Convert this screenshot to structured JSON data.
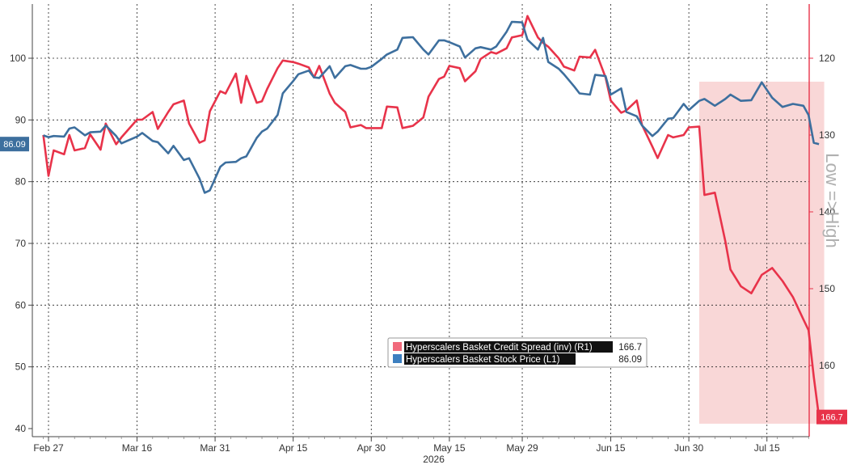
{
  "chart_data": {
    "type": "line",
    "x_year_label": "2026",
    "x_tick_labels": [
      "Feb 27",
      "Mar 16",
      "Mar 31",
      "Apr 15",
      "Apr 30",
      "May 15",
      "May 29",
      "Jun 15",
      "Jun 30",
      "Jul 15"
    ],
    "x_tick_dates": [
      "2026-02-27",
      "2026-03-16",
      "2026-03-31",
      "2026-04-15",
      "2026-04-30",
      "2026-05-15",
      "2026-05-29",
      "2026-06-15",
      "2026-06-30",
      "2026-07-15"
    ],
    "y_left": {
      "ticks": [
        40,
        50,
        60,
        70,
        80,
        90,
        100
      ],
      "range": [
        38,
        109
      ]
    },
    "y_right": {
      "ticks": [
        120,
        130,
        140,
        150,
        160
      ],
      "range": [
        113,
        170
      ],
      "inverted": true,
      "label": "Low =>High"
    },
    "highlight_region": {
      "x_start": "2026-07-02",
      "x_end": "2026-07-26",
      "color": "#f8d0d0"
    },
    "series": [
      {
        "name": "Hyperscalers Basket Stock Price (L1)",
        "axis": "left",
        "color": "#3d6f9e",
        "last_value_label": "86.09",
        "points": [
          [
            "2026-02-26",
            87.5
          ],
          [
            "2026-02-27",
            87.2
          ],
          [
            "2026-02-28",
            87.4
          ],
          [
            "2026-03-02",
            87.3
          ],
          [
            "2026-03-03",
            88.6
          ],
          [
            "2026-03-04",
            88.8
          ],
          [
            "2026-03-06",
            87.5
          ],
          [
            "2026-03-07",
            88.0
          ],
          [
            "2026-03-09",
            88.1
          ],
          [
            "2026-03-10",
            89.1
          ],
          [
            "2026-03-12",
            87.4
          ],
          [
            "2026-03-13",
            86.2
          ],
          [
            "2026-03-16",
            87.3
          ],
          [
            "2026-03-17",
            87.9
          ],
          [
            "2026-03-19",
            86.6
          ],
          [
            "2026-03-20",
            86.4
          ],
          [
            "2026-03-22",
            84.6
          ],
          [
            "2026-03-23",
            85.8
          ],
          [
            "2026-03-25",
            83.5
          ],
          [
            "2026-03-26",
            83.8
          ],
          [
            "2026-03-28",
            80.5
          ],
          [
            "2026-03-29",
            78.2
          ],
          [
            "2026-03-30",
            78.6
          ],
          [
            "2026-04-01",
            82.4
          ],
          [
            "2026-04-02",
            83.1
          ],
          [
            "2026-04-04",
            83.2
          ],
          [
            "2026-04-05",
            83.8
          ],
          [
            "2026-04-06",
            84.1
          ],
          [
            "2026-04-08",
            87.1
          ],
          [
            "2026-04-09",
            88.1
          ],
          [
            "2026-04-10",
            88.6
          ],
          [
            "2026-04-12",
            90.8
          ],
          [
            "2026-04-13",
            94.3
          ],
          [
            "2026-04-15",
            96.3
          ],
          [
            "2026-04-16",
            97.4
          ],
          [
            "2026-04-18",
            98.0
          ],
          [
            "2026-04-19",
            96.9
          ],
          [
            "2026-04-20",
            96.8
          ],
          [
            "2026-04-22",
            98.7
          ],
          [
            "2026-04-23",
            96.8
          ],
          [
            "2026-04-25",
            98.7
          ],
          [
            "2026-04-26",
            98.9
          ],
          [
            "2026-04-28",
            98.3
          ],
          [
            "2026-04-29",
            98.3
          ],
          [
            "2026-04-30",
            98.6
          ],
          [
            "2026-05-02",
            99.9
          ],
          [
            "2026-05-03",
            100.6
          ],
          [
            "2026-05-05",
            101.4
          ],
          [
            "2026-05-06",
            103.3
          ],
          [
            "2026-05-08",
            103.4
          ],
          [
            "2026-05-10",
            101.4
          ],
          [
            "2026-05-11",
            100.6
          ],
          [
            "2026-05-13",
            102.9
          ],
          [
            "2026-05-14",
            102.9
          ],
          [
            "2026-05-15",
            102.6
          ],
          [
            "2026-05-17",
            101.9
          ],
          [
            "2026-05-18",
            100.1
          ],
          [
            "2026-05-20",
            101.6
          ],
          [
            "2026-05-21",
            101.8
          ],
          [
            "2026-05-23",
            101.4
          ],
          [
            "2026-05-24",
            101.9
          ],
          [
            "2026-05-26",
            104.3
          ],
          [
            "2026-05-27",
            105.9
          ],
          [
            "2026-05-29",
            105.8
          ],
          [
            "2026-05-30",
            103.0
          ],
          [
            "2026-06-01",
            101.4
          ],
          [
            "2026-06-02",
            103.3
          ],
          [
            "2026-06-03",
            99.4
          ],
          [
            "2026-06-05",
            98.3
          ],
          [
            "2026-06-06",
            97.4
          ],
          [
            "2026-06-08",
            95.4
          ],
          [
            "2026-06-09",
            94.3
          ],
          [
            "2026-06-11",
            94.1
          ],
          [
            "2026-06-12",
            97.3
          ],
          [
            "2026-06-14",
            97.1
          ],
          [
            "2026-06-15",
            94.1
          ],
          [
            "2026-06-17",
            95.1
          ],
          [
            "2026-06-18",
            91.3
          ],
          [
            "2026-06-20",
            90.6
          ],
          [
            "2026-06-21",
            89.1
          ],
          [
            "2026-06-23",
            87.4
          ],
          [
            "2026-06-24",
            88.1
          ],
          [
            "2026-06-26",
            90.2
          ],
          [
            "2026-06-27",
            90.3
          ],
          [
            "2026-06-29",
            92.6
          ],
          [
            "2026-06-30",
            91.6
          ],
          [
            "2026-07-02",
            93.1
          ],
          [
            "2026-07-03",
            93.4
          ],
          [
            "2026-07-05",
            92.3
          ],
          [
            "2026-07-07",
            93.4
          ],
          [
            "2026-07-08",
            94.1
          ],
          [
            "2026-07-10",
            93.1
          ],
          [
            "2026-07-12",
            93.2
          ],
          [
            "2026-07-14",
            96.1
          ],
          [
            "2026-07-16",
            93.6
          ],
          [
            "2026-07-18",
            92.1
          ],
          [
            "2026-07-20",
            92.6
          ],
          [
            "2026-07-22",
            92.3
          ],
          [
            "2026-07-23",
            90.8
          ],
          [
            "2026-07-24",
            86.3
          ],
          [
            "2026-07-25",
            86.09
          ]
        ]
      },
      {
        "name": "Hyperscalers Basket Credit Spread (inv) (R1)",
        "axis": "right",
        "color": "#e8334a",
        "last_value_label": "166.7",
        "points": [
          [
            "2026-02-26",
            130.0
          ],
          [
            "2026-02-27",
            135.3
          ],
          [
            "2026-02-28",
            132.0
          ],
          [
            "2026-03-02",
            132.5
          ],
          [
            "2026-03-03",
            130.0
          ],
          [
            "2026-03-04",
            132.0
          ],
          [
            "2026-03-06",
            131.7
          ],
          [
            "2026-03-07",
            129.9
          ],
          [
            "2026-03-09",
            131.9
          ],
          [
            "2026-03-10",
            128.5
          ],
          [
            "2026-03-12",
            131.2
          ],
          [
            "2026-03-13",
            130.3
          ],
          [
            "2026-03-16",
            128.0
          ],
          [
            "2026-03-17",
            128.0
          ],
          [
            "2026-03-19",
            127.0
          ],
          [
            "2026-03-20",
            129.2
          ],
          [
            "2026-03-22",
            127.0
          ],
          [
            "2026-03-23",
            126.0
          ],
          [
            "2026-03-25",
            125.5
          ],
          [
            "2026-03-26",
            128.5
          ],
          [
            "2026-03-28",
            131.0
          ],
          [
            "2026-03-29",
            130.7
          ],
          [
            "2026-03-30",
            126.9
          ],
          [
            "2026-04-01",
            124.3
          ],
          [
            "2026-04-02",
            124.6
          ],
          [
            "2026-04-04",
            122.0
          ],
          [
            "2026-04-05",
            125.8
          ],
          [
            "2026-04-06",
            122.3
          ],
          [
            "2026-04-08",
            125.8
          ],
          [
            "2026-04-09",
            125.6
          ],
          [
            "2026-04-10",
            124.0
          ],
          [
            "2026-04-12",
            121.3
          ],
          [
            "2026-04-13",
            120.3
          ],
          [
            "2026-04-15",
            120.5
          ],
          [
            "2026-04-16",
            120.7
          ],
          [
            "2026-04-18",
            121.2
          ],
          [
            "2026-04-19",
            122.5
          ],
          [
            "2026-04-20",
            121.0
          ],
          [
            "2026-04-22",
            124.6
          ],
          [
            "2026-04-23",
            125.8
          ],
          [
            "2026-04-25",
            127.0
          ],
          [
            "2026-04-26",
            129.0
          ],
          [
            "2026-04-28",
            128.7
          ],
          [
            "2026-04-29",
            129.1
          ],
          [
            "2026-04-30",
            129.1
          ],
          [
            "2026-05-02",
            129.1
          ],
          [
            "2026-05-03",
            126.3
          ],
          [
            "2026-05-05",
            126.4
          ],
          [
            "2026-05-06",
            129.1
          ],
          [
            "2026-05-08",
            128.8
          ],
          [
            "2026-05-10",
            127.7
          ],
          [
            "2026-05-11",
            125.0
          ],
          [
            "2026-05-13",
            122.7
          ],
          [
            "2026-05-14",
            122.4
          ],
          [
            "2026-05-15",
            121.0
          ],
          [
            "2026-05-17",
            121.3
          ],
          [
            "2026-05-18",
            123.0
          ],
          [
            "2026-05-20",
            121.7
          ],
          [
            "2026-05-21",
            120.1
          ],
          [
            "2026-05-23",
            119.2
          ],
          [
            "2026-05-24",
            119.4
          ],
          [
            "2026-05-26",
            118.7
          ],
          [
            "2026-05-27",
            117.3
          ],
          [
            "2026-05-29",
            117.0
          ],
          [
            "2026-05-30",
            114.5
          ],
          [
            "2026-06-01",
            117.3
          ],
          [
            "2026-06-02",
            118.0
          ],
          [
            "2026-06-03",
            118.5
          ],
          [
            "2026-06-05",
            120.0
          ],
          [
            "2026-06-06",
            121.1
          ],
          [
            "2026-06-08",
            121.6
          ],
          [
            "2026-06-09",
            119.8
          ],
          [
            "2026-06-11",
            119.9
          ],
          [
            "2026-06-12",
            118.9
          ],
          [
            "2026-06-14",
            122.5
          ],
          [
            "2026-06-15",
            125.5
          ],
          [
            "2026-06-17",
            127.1
          ],
          [
            "2026-06-18",
            126.8
          ],
          [
            "2026-06-20",
            125.5
          ],
          [
            "2026-06-21",
            128.7
          ],
          [
            "2026-06-23",
            131.5
          ],
          [
            "2026-06-24",
            133.0
          ],
          [
            "2026-06-26",
            130.0
          ],
          [
            "2026-06-27",
            130.3
          ],
          [
            "2026-06-29",
            130.0
          ],
          [
            "2026-06-30",
            129.0
          ],
          [
            "2026-07-02",
            128.9
          ],
          [
            "2026-07-03",
            137.8
          ],
          [
            "2026-07-05",
            137.5
          ],
          [
            "2026-07-07",
            143.8
          ],
          [
            "2026-07-08",
            147.5
          ],
          [
            "2026-07-10",
            149.7
          ],
          [
            "2026-07-12",
            150.6
          ],
          [
            "2026-07-14",
            148.2
          ],
          [
            "2026-07-16",
            147.3
          ],
          [
            "2026-07-18",
            149.0
          ],
          [
            "2026-07-20",
            151.1
          ],
          [
            "2026-07-22",
            154.0
          ],
          [
            "2026-07-23",
            155.4
          ],
          [
            "2026-07-24",
            161.5
          ],
          [
            "2026-07-25",
            166.7
          ]
        ]
      }
    ],
    "legend": {
      "placement": "bottom-center",
      "entries": [
        {
          "label": "Hyperscalers Basket Credit Spread (inv) (R1)",
          "value": "166.7",
          "color": "#f16a7c"
        },
        {
          "label": "Hyperscalers Basket Stock Price (L1)",
          "value": "86.09",
          "color": "#3d7fc0"
        }
      ]
    },
    "grid": true
  }
}
